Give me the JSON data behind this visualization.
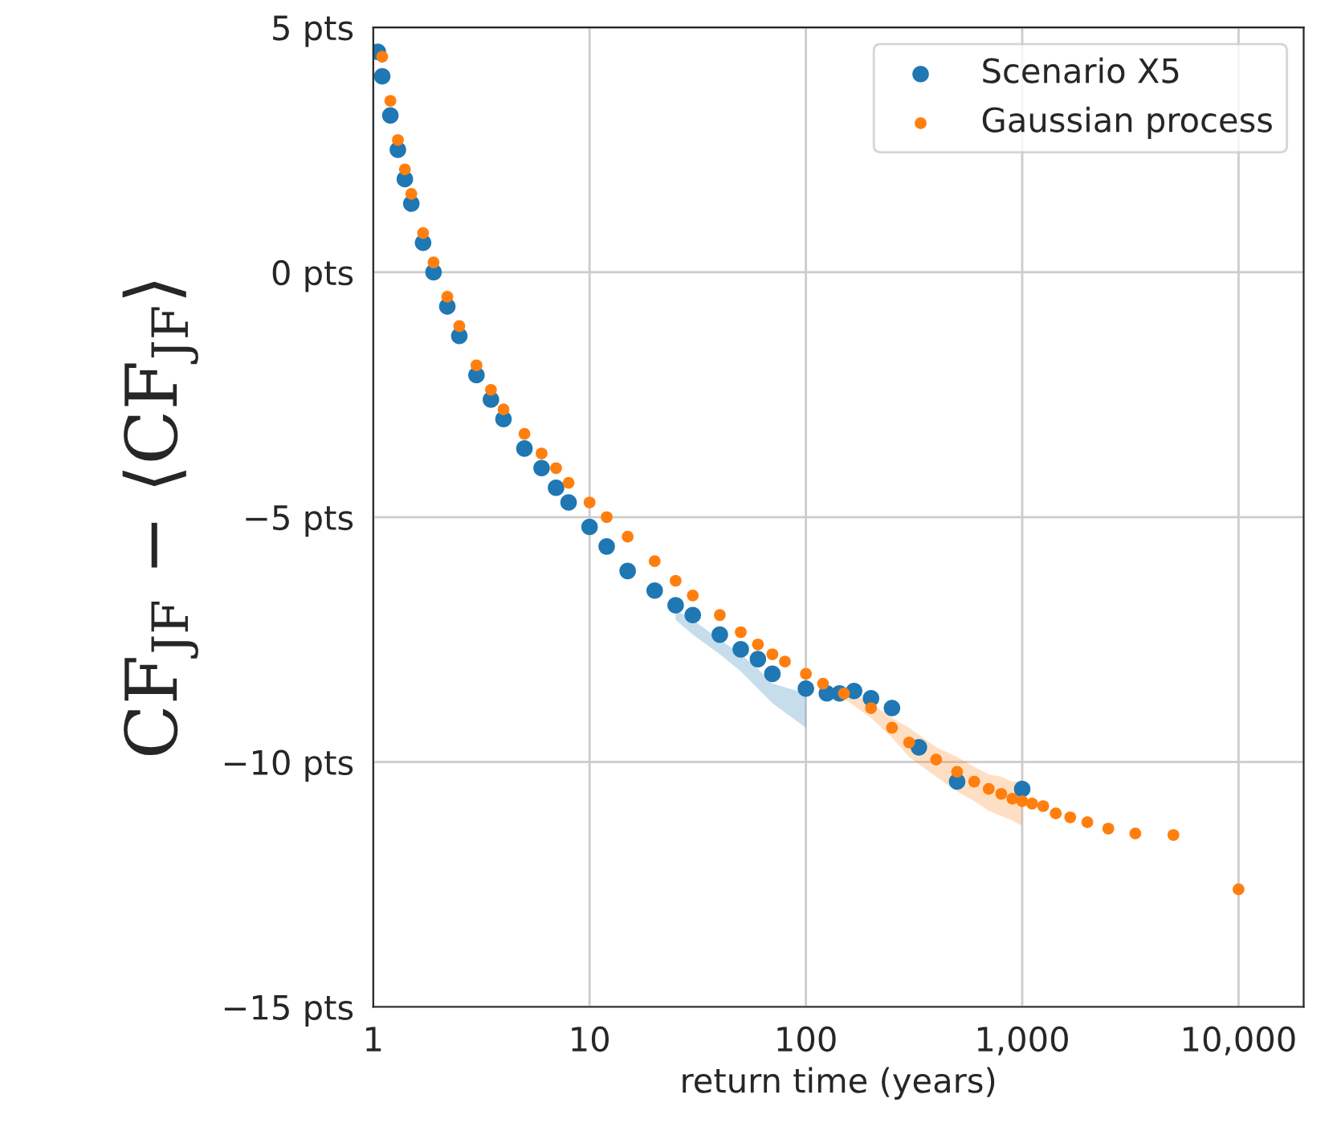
{
  "chart_data": {
    "type": "scatter",
    "xlabel": "return time (years)",
    "ylabel": "CF$_{JF}$ − ⟨CF$_{JF}$⟩",
    "log": "x",
    "xlim": [
      1,
      20000
    ],
    "xticks": [
      1,
      10,
      100,
      {
        "value": 1000,
        "label": "1,000"
      },
      {
        "value": 10000,
        "label": "10,000"
      }
    ],
    "ylim": [
      -15,
      5
    ],
    "yticks": [
      {
        "value": 5,
        "label": "5 pts"
      },
      {
        "value": 0,
        "label": "0 pts"
      },
      {
        "value": -5,
        "label": "−5 pts"
      },
      {
        "value": -10,
        "label": "−10 pts"
      },
      {
        "value": -15,
        "label": "−15 pts"
      }
    ],
    "grid": true,
    "legend": "top right",
    "marker": "circle",
    "series": [
      {
        "name": "Scenario X5",
        "color": "#1f77b4",
        "x": [
          1.05,
          1.1,
          1.2,
          1.3,
          1.4,
          1.5,
          1.7,
          1.9,
          2.2,
          2.5,
          3,
          3.5,
          4,
          5,
          6,
          7,
          8,
          10,
          12,
          15,
          20,
          25,
          30,
          40,
          50,
          60,
          70,
          100,
          125,
          143,
          167,
          200,
          250,
          333,
          500,
          1000
        ],
        "values": [
          4.5,
          4.0,
          3.2,
          2.5,
          1.9,
          1.4,
          0.6,
          0.0,
          -0.7,
          -1.3,
          -2.1,
          -2.6,
          -3.0,
          -3.6,
          -4.0,
          -4.4,
          -4.7,
          -5.2,
          -5.6,
          -6.1,
          -6.5,
          -6.8,
          -7.0,
          -7.4,
          -7.7,
          -7.9,
          -8.2,
          -8.5,
          -8.6,
          -8.6,
          -8.55,
          -8.7,
          -8.9,
          -9.7,
          -10.4,
          -10.55
        ],
        "lower": [
          null,
          null,
          null,
          null,
          null,
          null,
          null,
          null,
          null,
          null,
          null,
          null,
          null,
          null,
          null,
          null,
          null,
          null,
          null,
          null,
          null,
          -7.1,
          -7.4,
          -7.8,
          -8.15,
          -8.5,
          -8.8,
          -9.3,
          null,
          null,
          null,
          null,
          null,
          null,
          null,
          null
        ],
        "upper": [
          null,
          null,
          null,
          null,
          null,
          null,
          null,
          null,
          null,
          null,
          null,
          null,
          null,
          null,
          null,
          null,
          null,
          null,
          null,
          null,
          null,
          -6.9,
          -7.1,
          -7.5,
          -7.8,
          -8.1,
          -8.4,
          -8.6,
          null,
          null,
          null,
          null,
          null,
          null,
          null,
          null
        ]
      },
      {
        "name": "Gaussian process",
        "color": "#ff7f0e",
        "x": [
          1.1,
          1.2,
          1.3,
          1.4,
          1.5,
          1.7,
          1.9,
          2.2,
          2.5,
          3,
          3.5,
          4,
          5,
          6,
          7,
          8,
          10,
          12,
          15,
          20,
          25,
          30,
          40,
          50,
          60,
          70,
          80,
          100,
          120,
          150,
          200,
          250,
          300,
          400,
          500,
          600,
          700,
          800,
          900,
          1000,
          1111,
          1250,
          1429,
          1667,
          2000,
          2500,
          3333,
          5000,
          10000
        ],
        "values": [
          4.4,
          3.5,
          2.7,
          2.1,
          1.6,
          0.8,
          0.2,
          -0.5,
          -1.1,
          -1.9,
          -2.4,
          -2.8,
          -3.3,
          -3.7,
          -4.0,
          -4.3,
          -4.7,
          -5.0,
          -5.4,
          -5.9,
          -6.3,
          -6.6,
          -7.0,
          -7.35,
          -7.6,
          -7.8,
          -7.95,
          -8.2,
          -8.4,
          -8.6,
          -8.9,
          -9.3,
          -9.6,
          -9.95,
          -10.2,
          -10.4,
          -10.55,
          -10.65,
          -10.75,
          -10.8,
          -10.85,
          -10.9,
          -11.05,
          -11.13,
          -11.23,
          -11.36,
          -11.46,
          -11.49,
          -12.6
        ],
        "lower": [
          null,
          null,
          null,
          null,
          null,
          null,
          null,
          null,
          null,
          null,
          null,
          null,
          null,
          null,
          null,
          null,
          null,
          null,
          null,
          null,
          null,
          null,
          null,
          null,
          null,
          null,
          null,
          null,
          null,
          -8.7,
          -9.1,
          -9.5,
          -9.9,
          -10.3,
          -10.6,
          -10.8,
          -11.0,
          -11.1,
          -11.2,
          -11.3,
          null,
          null,
          null,
          null,
          null,
          null,
          null,
          null,
          null
        ],
        "upper": [
          null,
          null,
          null,
          null,
          null,
          null,
          null,
          null,
          null,
          null,
          null,
          null,
          null,
          null,
          null,
          null,
          null,
          null,
          null,
          null,
          null,
          null,
          null,
          null,
          null,
          null,
          null,
          null,
          null,
          -8.5,
          -8.8,
          -9.1,
          -9.3,
          -9.7,
          -9.9,
          -10.1,
          -10.25,
          -10.3,
          -10.4,
          -10.4,
          null,
          null,
          null,
          null,
          null,
          null,
          null,
          null,
          null
        ]
      }
    ]
  }
}
